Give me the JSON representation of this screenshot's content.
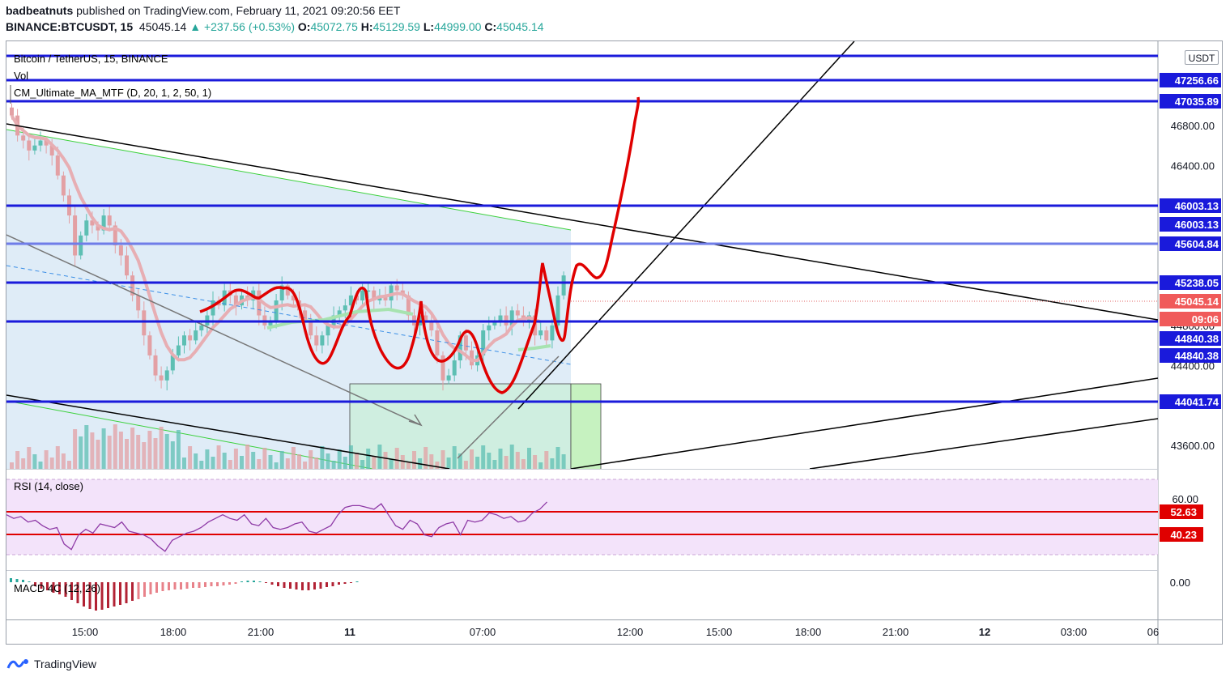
{
  "header": {
    "author": "badbeatnuts",
    "published": "published on TradingView.com, February 11, 2021 09:20:56 EET",
    "symbol": "BINANCE:BTCUSDT, 15",
    "last": "45045.14",
    "change": "▲ +237.56 (+0.53%)",
    "o_label": "O:",
    "o": "45072.75",
    "h_label": "H:",
    "h": "45129.59",
    "l_label": "L:",
    "l": "44999.00",
    "c_label": "C:",
    "c": "45045.14"
  },
  "legend": {
    "title": "Bitcoin / TetherUS, 15, BINANCE",
    "vol": "Vol",
    "ma": "CM_Ultimate_MA_MTF (D, 20, 1, 2, 50, 1)",
    "rsi": "RSI (14, close)",
    "macd": "MACD 4C (12, 26)"
  },
  "currency": "USDT",
  "footer": {
    "brand": "TradingView"
  },
  "colors": {
    "level": "#1a1adb",
    "level_label": "#1a1adb",
    "drawing": "#e00000",
    "rsi_line": "#8e3aa6",
    "rsi_band": "#f3e3fa",
    "up": "#5dbfb3",
    "down": "#e3a0a4",
    "ma": "#e7aeb3",
    "ma_green": "#a7e3b0",
    "shade": "#dceaf6"
  },
  "chart_data": {
    "type": "candlestick",
    "timeframe": "15",
    "x_ticks": [
      "15:00",
      "18:00",
      "21:00",
      "11",
      "07:00",
      "12:00",
      "15:00",
      "18:00",
      "21:00",
      "12",
      "03:00",
      "06"
    ],
    "y_ticks": [
      43600,
      44400,
      44800,
      46400,
      46800
    ],
    "y_ticks_labels": [
      "43600.00",
      "44400.00",
      "44800.00",
      "46400.00",
      "46800.00"
    ],
    "horizontal_levels": [
      47256.66,
      47035.89,
      46003.13,
      45604.84,
      45238.05,
      44840.38,
      44041.74
    ],
    "horizontal_level_labels": [
      "47256.66",
      "47035.89",
      "46003.13",
      "46003.13",
      "45604.84",
      "45238.05",
      "44840.38",
      "44840.38",
      "44041.74"
    ],
    "last_price": 45045.14,
    "last_price_label": "45045.14",
    "countdown": "09:06",
    "closes": [
      46900,
      46700,
      46650,
      46550,
      46600,
      46650,
      46600,
      46500,
      46300,
      46100,
      45900,
      45500,
      45700,
      45850,
      45800,
      45750,
      45900,
      45800,
      45600,
      45500,
      45300,
      45100,
      44950,
      44700,
      44500,
      44300,
      44250,
      44350,
      44500,
      44600,
      44700,
      44650,
      44750,
      44800,
      44900,
      45050,
      45000,
      45150,
      45100,
      45000,
      45100,
      45050,
      45150,
      44900,
      44800,
      44850,
      45050,
      45200,
      45100,
      45050,
      44950,
      44850,
      44700,
      44600,
      44700,
      44800,
      44900,
      44950,
      45000,
      45100,
      45050,
      45150,
      45150,
      45050,
      45100,
      45050,
      45200,
      45150,
      45100,
      44900,
      44800,
      44900,
      44850,
      44750,
      44500,
      44250,
      44300,
      44450,
      44700,
      44550,
      44400,
      44500,
      44750,
      44800,
      44850,
      44900,
      44800,
      44950,
      44900,
      44850,
      44900,
      44700,
      44750,
      44650,
      44800,
      45100,
      45300
    ],
    "rsi": {
      "levels": [
        52.63,
        40.23
      ],
      "level_labels": [
        "52.63",
        "40.23"
      ],
      "tick": 60,
      "tick_label": "60.00",
      "values": [
        51,
        49,
        50,
        47,
        48,
        45,
        43,
        44,
        35,
        32,
        40,
        43,
        41,
        46,
        45,
        44,
        47,
        42,
        41,
        40,
        38,
        34,
        31,
        37,
        39,
        41,
        42,
        44,
        47,
        49,
        51,
        49,
        48,
        51,
        46,
        45,
        49,
        44,
        43,
        44,
        46,
        47,
        42,
        41,
        43,
        45,
        51,
        55,
        56,
        56,
        55,
        54,
        57,
        51,
        45,
        43,
        48,
        46,
        40,
        39,
        44,
        46,
        47,
        40,
        48,
        47,
        48,
        52,
        51,
        49,
        50,
        47,
        48,
        52,
        54,
        58
      ],
      "tick_labels": [
        "60.00"
      ]
    },
    "macd": {
      "tick": 0,
      "tick_label": "0.00",
      "values": [
        0.5,
        0.4,
        0.3,
        0.1,
        -0.5,
        -0.8,
        -1,
        -1.3,
        -1.5,
        -1.8,
        -2.2,
        -2.6,
        -3,
        -3.3,
        -3.5,
        -3.4,
        -3.2,
        -3,
        -2.8,
        -2.6,
        -2.3,
        -2.1,
        -1.8,
        -1.5,
        -1.3,
        -1.1,
        -1,
        -0.9,
        -0.9,
        -0.8,
        -0.7,
        -0.7,
        -0.6,
        -0.5,
        -0.5,
        -0.4,
        -0.3,
        -0.2,
        0.1,
        0.2,
        0.2,
        0.1,
        -0.1,
        -0.3,
        -0.5,
        -0.7,
        -0.8,
        -0.9,
        -1,
        -1,
        -0.9,
        -0.8,
        -0.6,
        -0.5,
        -0.3,
        -0.2,
        -0.1,
        0.1
      ]
    }
  }
}
